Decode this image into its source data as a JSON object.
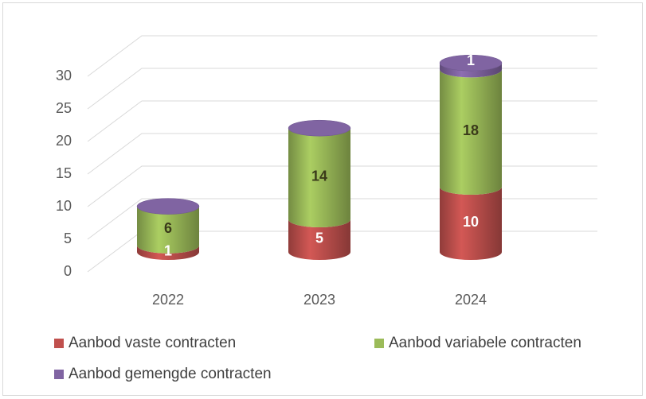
{
  "chart_data": {
    "type": "bar",
    "stacked": true,
    "categories": [
      "2022",
      "2023",
      "2024"
    ],
    "series": [
      {
        "name": "Aanbod vaste contracten",
        "color": "#c0504d",
        "values": [
          1,
          5,
          10
        ]
      },
      {
        "name": "Aanbod variabele contracten",
        "color": "#9bbb59",
        "values": [
          6,
          14,
          18
        ]
      },
      {
        "name": "Aanbod gemengde contracten",
        "color": "#8064a2",
        "values": [
          0,
          0,
          1
        ]
      }
    ],
    "ylim": [
      0,
      30
    ],
    "yticks": [
      0,
      5,
      10,
      15,
      20,
      25,
      30
    ],
    "grid": true,
    "legend": "bottom"
  }
}
